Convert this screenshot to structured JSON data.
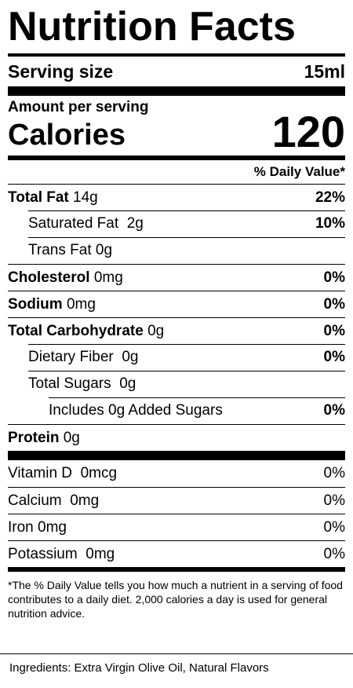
{
  "title": "Nutrition Facts",
  "serving": {
    "label": "Serving size",
    "value": "15ml"
  },
  "amount_per_serving": "Amount per serving",
  "calories": {
    "label": "Calories",
    "value": "120"
  },
  "daily_value_header": "% Daily Value*",
  "nutrients": [
    {
      "name": "Total Fat",
      "amount": "14g",
      "dv": "22%"
    },
    {
      "name": "Saturated Fat",
      "amount": "2g",
      "dv": "10%"
    },
    {
      "name": "Trans Fat",
      "amount": "0g",
      "dv": ""
    },
    {
      "name": "Cholesterol",
      "amount": "0mg",
      "dv": "0%"
    },
    {
      "name": "Sodium",
      "amount": "0mg",
      "dv": "0%"
    },
    {
      "name": "Total Carbohydrate",
      "amount": "0g",
      "dv": "0%"
    },
    {
      "name": "Dietary Fiber",
      "amount": "0g",
      "dv": "0%"
    },
    {
      "name": "Total Sugars",
      "amount": "0g",
      "dv": ""
    },
    {
      "name": "Includes 0g Added Sugars",
      "amount": "",
      "dv": "0%"
    },
    {
      "name": "Protein",
      "amount": "0g",
      "dv": ""
    }
  ],
  "vitamins": [
    {
      "name": "Vitamin D",
      "amount": "0mcg",
      "dv": "0%"
    },
    {
      "name": "Calcium",
      "amount": "0mg",
      "dv": "0%"
    },
    {
      "name": "Iron",
      "amount": "0mg",
      "dv": "0%"
    },
    {
      "name": "Potassium",
      "amount": "0mg",
      "dv": "0%"
    }
  ],
  "footnote": "*The % Daily Value tells you how much a nutrient in a serving of food contributes to a daily diet. 2,000 calories a day is used for general nutrition advice.",
  "ingredients": "Ingredients: Extra Virgin Olive Oil, Natural Flavors"
}
